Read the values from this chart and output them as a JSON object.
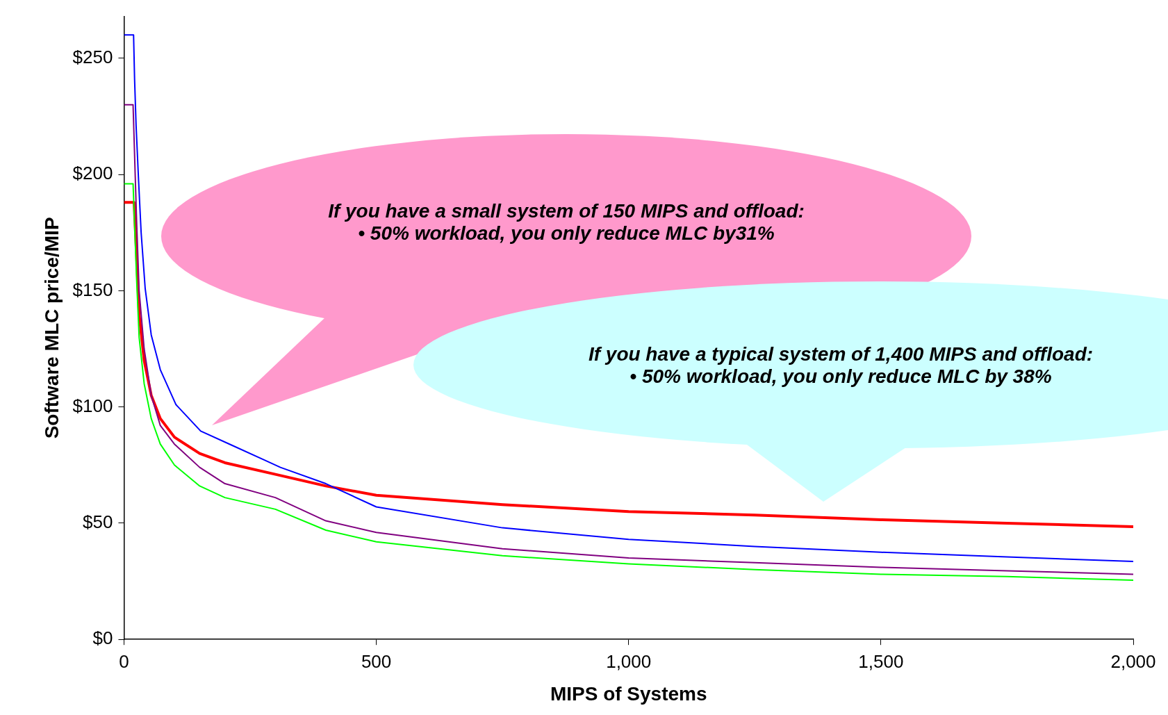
{
  "chart_data": {
    "type": "line",
    "xlabel": "MIPS of Systems",
    "ylabel": "Software MLC price/MIP",
    "xlim": [
      0,
      2000
    ],
    "xticks": [
      0,
      500,
      {
        "value": 1000,
        "label": "1,000"
      },
      {
        "value": 1500,
        "label": "1,500"
      },
      {
        "value": 2000,
        "label": "2,000"
      }
    ],
    "ylim": [
      0,
      268
    ],
    "yticks": [
      {
        "value": 0,
        "label": "$0"
      },
      {
        "value": 50,
        "label": "$50"
      },
      {
        "value": 100,
        "label": "$100"
      },
      {
        "value": 150,
        "label": "$150"
      },
      {
        "value": 200,
        "label": "$200"
      },
      {
        "value": 250,
        "label": "$250"
      }
    ],
    "grid": false,
    "legend": false,
    "marker": "none",
    "line_style": "solid",
    "series": [
      {
        "color": "#0000ff",
        "x": [
          0,
          19,
          21,
          24,
          29,
          34,
          42,
          54,
          72,
          103,
          152,
          213,
          280,
          310,
          400,
          500,
          750,
          1000,
          1250,
          1500,
          1750,
          2000
        ],
        "values": [
          260,
          260,
          241,
          221,
          197,
          175,
          151,
          131,
          116,
          101,
          89.6,
          83.6,
          77,
          74,
          67,
          57,
          48,
          43,
          40,
          37.5,
          35.5,
          33.5
        ]
      },
      {
        "color": "#800080",
        "x": [
          0,
          18,
          25,
          30,
          40,
          54,
          72,
          100,
          150,
          200,
          300,
          400,
          500,
          750,
          1000,
          1250,
          1500,
          1750,
          2000
        ],
        "values": [
          230,
          230,
          180,
          150,
          125,
          105,
          92,
          84,
          74,
          67,
          61,
          51,
          46,
          39,
          35,
          33,
          31,
          29.5,
          28
        ]
      },
      {
        "color": "#00ff00",
        "x": [
          0,
          18,
          25,
          30,
          40,
          54,
          72,
          100,
          150,
          200,
          300,
          400,
          500,
          750,
          1000,
          1250,
          1500,
          1750,
          2000
        ],
        "values": [
          196,
          196,
          155,
          130,
          110,
          95,
          84,
          75,
          66,
          61,
          56,
          47,
          42,
          36,
          32.5,
          30,
          28,
          27,
          25.5
        ]
      },
      {
        "color": "#ff0000",
        "x": [
          0,
          20,
          25,
          30,
          40,
          54,
          72,
          100,
          150,
          200,
          300,
          400,
          500,
          750,
          1000,
          1250,
          1500,
          1750,
          2000
        ],
        "values": [
          188,
          188,
          165,
          140,
          120,
          105,
          95,
          87,
          80,
          76,
          71,
          66,
          62,
          58,
          55,
          53.5,
          51.5,
          50,
          48.5
        ]
      }
    ],
    "annotations": [
      "If you have a small system of 150 MIPS and offload:\n•  50% workload, you only reduce MLC by31%",
      "If you have a typical system of 1,400 MIPS and offload:\n• 50% workload, you only reduce MLC by 38%"
    ]
  }
}
